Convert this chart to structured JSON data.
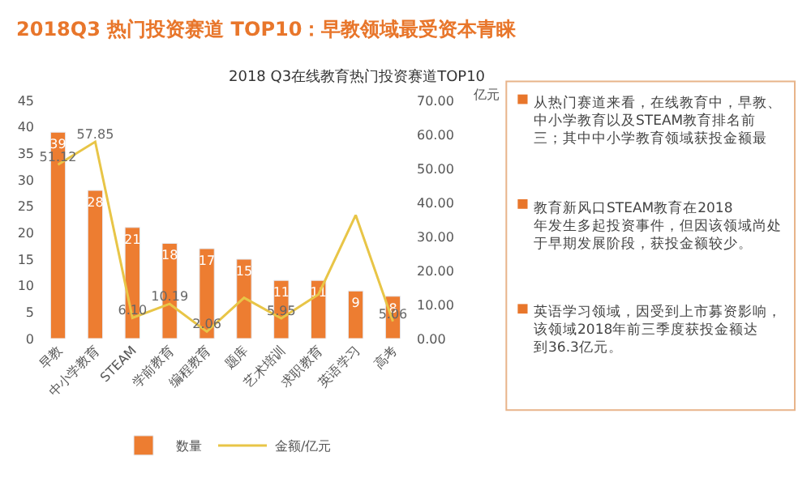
{
  "chart_data": {
    "type": "bar",
    "title": "2018Q3 热门投资赛道 TOP10：早教领域最受资本青睐",
    "subtitle": "2018 Q3在线教育热门投资赛道TOP10",
    "y2label": "亿元",
    "categories": [
      "早教",
      "中小学教育",
      "STEAM",
      "学前教育",
      "编程教育",
      "题库",
      "艺术培训",
      "求职教育",
      "英语学习",
      "高考"
    ],
    "series": [
      {
        "name": "数量",
        "color": "#ed7d31",
        "values": [
          39,
          28,
          21,
          18,
          17,
          15,
          11,
          11,
          9,
          8
        ],
        "data_labels": true
      },
      {
        "name": "金额/亿元",
        "type": "line",
        "axis": "y2",
        "color": "#e8c547",
        "values": [
          51.12,
          57.85,
          6.1,
          10.19,
          2.06,
          12,
          5.95,
          13,
          36.3,
          5.06
        ],
        "value_labels": [
          "51.12",
          "57.85",
          "6.10",
          "10.19",
          "2.06",
          null,
          "5.95",
          null,
          null,
          "5.06"
        ]
      }
    ],
    "ylim": [
      0,
      45
    ],
    "yticks": [
      0,
      5,
      10,
      15,
      20,
      25,
      30,
      35,
      40,
      45
    ],
    "y2lim": [
      0,
      70
    ],
    "y2ticks": [
      {
        "value": 0,
        "label": "0.00"
      },
      {
        "value": 10,
        "label": "10.00"
      },
      {
        "value": 20,
        "label": "20.00"
      },
      {
        "value": 30,
        "label": "30.00"
      },
      {
        "value": 40,
        "label": "40.00"
      },
      {
        "value": 50,
        "label": "50.00"
      },
      {
        "value": 60,
        "label": "60.00"
      },
      {
        "value": 70,
        "label": "70.00"
      }
    ],
    "grid": false,
    "legend": "bottom",
    "marker": "none",
    "annotations": [
      "从热门赛道来看，在线教育中，早教、中小学教育以及STEAM教育排名前三；其中中小学教育领域获投金额最",
      "教育新风口STEAM教育在2018年发生多起投资事件，但因该领域尚处于早期发展阶段，获投金额较少。",
      "英语学习领域，因受到上市募资影响，该领域2018年前三季度获投金额达到36.3亿元。"
    ]
  }
}
